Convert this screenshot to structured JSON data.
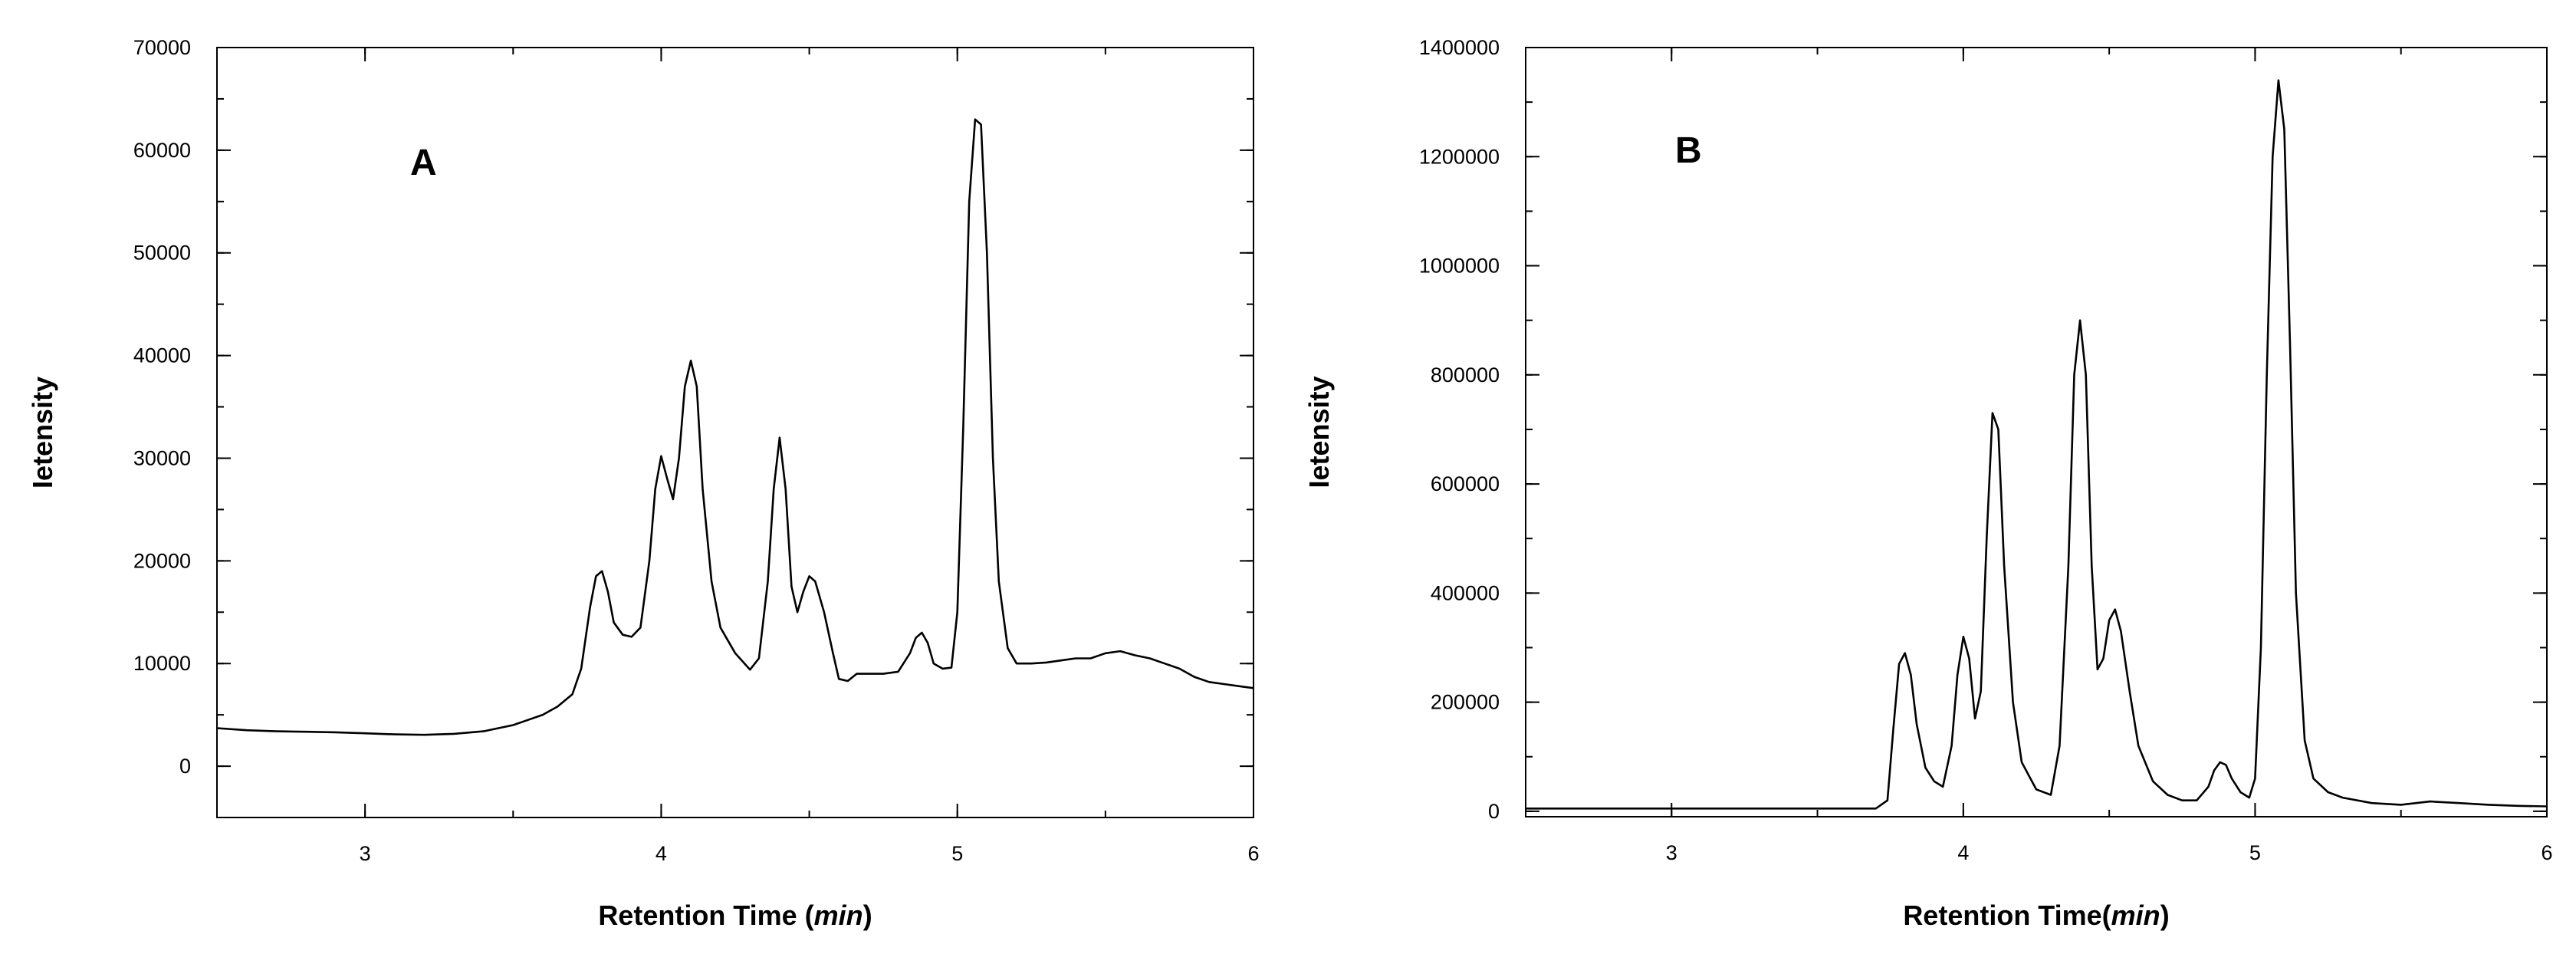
{
  "chart_data": [
    {
      "type": "line",
      "panel_label": "A",
      "xlabel_main": "Retention Time (",
      "xlabel_unit": "min",
      "xlabel_end": ")",
      "ylabel": "Ietensity",
      "xlim": [
        2.5,
        6
      ],
      "ylim": [
        -5000,
        70000
      ],
      "x_ticks": [
        3,
        4,
        5,
        6
      ],
      "y_ticks": [
        0,
        10000,
        20000,
        30000,
        40000,
        50000,
        60000,
        70000
      ],
      "x_tick_labels": [
        "3",
        "4",
        "5",
        "6"
      ],
      "y_tick_labels": [
        "0",
        "10000",
        "20000",
        "30000",
        "40000",
        "50000",
        "60000",
        "70000"
      ],
      "series": [
        {
          "x": [
            2.5,
            2.6,
            2.7,
            2.8,
            2.9,
            3.0,
            3.1,
            3.2,
            3.3,
            3.4,
            3.5,
            3.55,
            3.6,
            3.65,
            3.7,
            3.73,
            3.76,
            3.78,
            3.8,
            3.82,
            3.84,
            3.87,
            3.9,
            3.93,
            3.96,
            3.98,
            4.0,
            4.02,
            4.04,
            4.06,
            4.08,
            4.1,
            4.12,
            4.14,
            4.17,
            4.2,
            4.25,
            4.3,
            4.33,
            4.36,
            4.38,
            4.4,
            4.42,
            4.44,
            4.46,
            4.48,
            4.5,
            4.52,
            4.55,
            4.58,
            4.6,
            4.63,
            4.66,
            4.7,
            4.75,
            4.8,
            4.84,
            4.86,
            4.88,
            4.9,
            4.92,
            4.95,
            4.98,
            5.0,
            5.02,
            5.04,
            5.06,
            5.08,
            5.1,
            5.12,
            5.14,
            5.17,
            5.2,
            5.25,
            5.3,
            5.35,
            5.4,
            5.45,
            5.5,
            5.55,
            5.6,
            5.65,
            5.7,
            5.75,
            5.8,
            5.85,
            5.9,
            5.95,
            6.0
          ],
          "y": [
            3700,
            3500,
            3400,
            3350,
            3300,
            3200,
            3100,
            3050,
            3150,
            3400,
            4000,
            4500,
            5000,
            5800,
            7000,
            9500,
            15500,
            18500,
            19000,
            17000,
            14000,
            12800,
            12600,
            13500,
            20000,
            27000,
            30200,
            28000,
            26000,
            30000,
            37000,
            39500,
            37000,
            27000,
            18000,
            13500,
            11000,
            9400,
            10500,
            18000,
            27000,
            32000,
            27000,
            17500,
            15000,
            17000,
            18500,
            18000,
            15000,
            11000,
            8500,
            8300,
            9000,
            9000,
            9000,
            9200,
            11000,
            12500,
            13000,
            12000,
            10000,
            9500,
            9600,
            15000,
            33000,
            55000,
            63000,
            62500,
            50000,
            30000,
            18000,
            11500,
            10000,
            10000,
            10100,
            10300,
            10500,
            10500,
            11000,
            11200,
            10800,
            10500,
            10000,
            9500,
            8700,
            8200,
            8000,
            7800,
            7600
          ]
        }
      ]
    },
    {
      "type": "line",
      "panel_label": "B",
      "xlabel_main": "Retention Time(",
      "xlabel_unit": "min",
      "xlabel_end": ")",
      "ylabel": "Ietensity",
      "xlim": [
        2.5,
        6
      ],
      "ylim": [
        -10000,
        1400000
      ],
      "x_ticks": [
        3,
        4,
        5,
        6
      ],
      "y_ticks": [
        0,
        200000,
        400000,
        600000,
        800000,
        1000000,
        1200000,
        1400000
      ],
      "x_tick_labels": [
        "3",
        "4",
        "5",
        "6"
      ],
      "y_tick_labels": [
        "0",
        "200000",
        "400000",
        "600000",
        "800000",
        "1000000",
        "1200000",
        "1400000"
      ],
      "series": [
        {
          "x": [
            2.5,
            3.0,
            3.5,
            3.7,
            3.74,
            3.76,
            3.78,
            3.8,
            3.82,
            3.84,
            3.87,
            3.9,
            3.93,
            3.96,
            3.98,
            4.0,
            4.02,
            4.04,
            4.06,
            4.08,
            4.1,
            4.12,
            4.14,
            4.17,
            4.2,
            4.25,
            4.3,
            4.33,
            4.36,
            4.38,
            4.4,
            4.42,
            4.44,
            4.46,
            4.48,
            4.5,
            4.52,
            4.54,
            4.57,
            4.6,
            4.65,
            4.7,
            4.75,
            4.8,
            4.84,
            4.86,
            4.88,
            4.9,
            4.92,
            4.95,
            4.98,
            5.0,
            5.02,
            5.04,
            5.06,
            5.08,
            5.1,
            5.12,
            5.14,
            5.17,
            5.2,
            5.25,
            5.3,
            5.4,
            5.5,
            5.6,
            5.7,
            5.8,
            5.9,
            6.0
          ],
          "y": [
            5000,
            5000,
            5000,
            5000,
            20000,
            150000,
            270000,
            290000,
            250000,
            160000,
            80000,
            55000,
            45000,
            120000,
            250000,
            320000,
            280000,
            170000,
            220000,
            500000,
            730000,
            700000,
            450000,
            200000,
            90000,
            40000,
            30000,
            120000,
            450000,
            800000,
            900000,
            800000,
            450000,
            260000,
            280000,
            350000,
            370000,
            330000,
            220000,
            120000,
            55000,
            30000,
            20000,
            20000,
            45000,
            75000,
            90000,
            85000,
            60000,
            35000,
            25000,
            60000,
            300000,
            800000,
            1200000,
            1340000,
            1250000,
            850000,
            400000,
            130000,
            60000,
            35000,
            25000,
            15000,
            12000,
            18000,
            15000,
            12000,
            10000,
            9000
          ]
        }
      ]
    }
  ]
}
